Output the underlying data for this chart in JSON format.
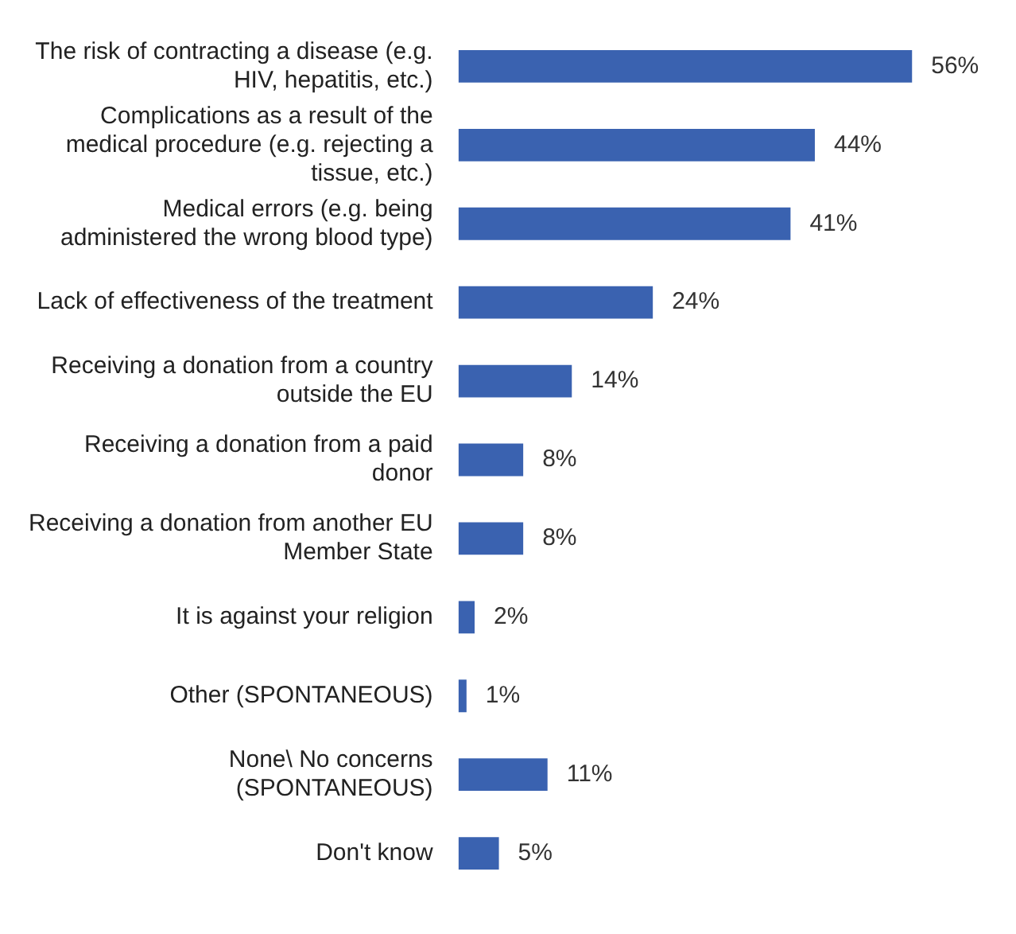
{
  "chart_data": {
    "type": "bar",
    "orientation": "horizontal",
    "categories": [
      "The risk of contracting a disease (e.g. HIV, hepatitis, etc.)",
      "Complications as a result of the medical procedure (e.g. rejecting a tissue, etc.)",
      "Medical errors (e.g. being administered the wrong blood type)",
      "Lack of effectiveness of the treatment",
      "Receiving a donation from a country outside the EU",
      "Receiving a donation from a paid donor",
      "Receiving a donation from another EU Member State",
      "It is against your religion",
      "Other (SPONTANEOUS)",
      "None\\ No concerns (SPONTANEOUS)",
      "Don't know"
    ],
    "values": [
      56,
      44,
      41,
      24,
      14,
      8,
      8,
      2,
      1,
      11,
      5
    ],
    "value_labels": [
      "56%",
      "44%",
      "41%",
      "24%",
      "14%",
      "8%",
      "8%",
      "2%",
      "1%",
      "11%",
      "5%"
    ],
    "color": "#3a62b0",
    "legend": false
  }
}
